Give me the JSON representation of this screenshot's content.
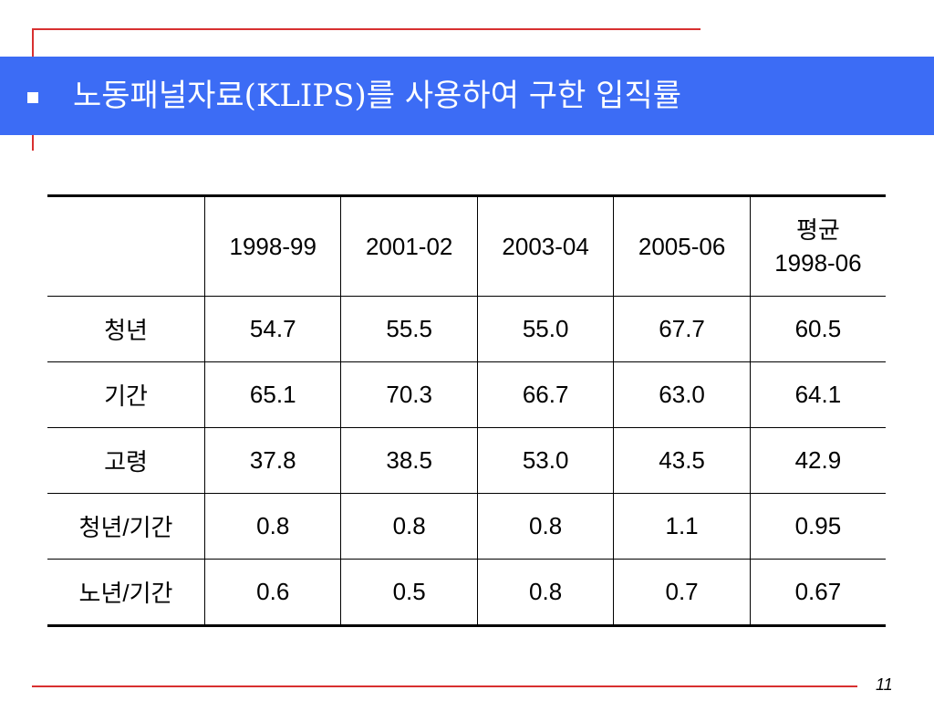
{
  "title": "노동패널자료(KLIPS)를 사용하여 구한 입직률",
  "table": {
    "columns": [
      "1998-99",
      "2001-02",
      "2003-04",
      "2005-06"
    ],
    "average_column": [
      "평균",
      "1998-06"
    ],
    "rows": [
      [
        "청년",
        "54.7",
        "55.5",
        "55.0",
        "67.7",
        "60.5"
      ],
      [
        "기간",
        "65.1",
        "70.3",
        "66.7",
        "63.0",
        "64.1"
      ],
      [
        "고령",
        "37.8",
        "38.5",
        "53.0",
        "43.5",
        "42.9"
      ],
      [
        "청년/기간",
        "0.8",
        "0.8",
        "0.8",
        "1.1",
        "0.95"
      ],
      [
        "노년/기간",
        "0.6",
        "0.5",
        "0.8",
        "0.7",
        "0.67"
      ]
    ]
  },
  "page_number": "11"
}
